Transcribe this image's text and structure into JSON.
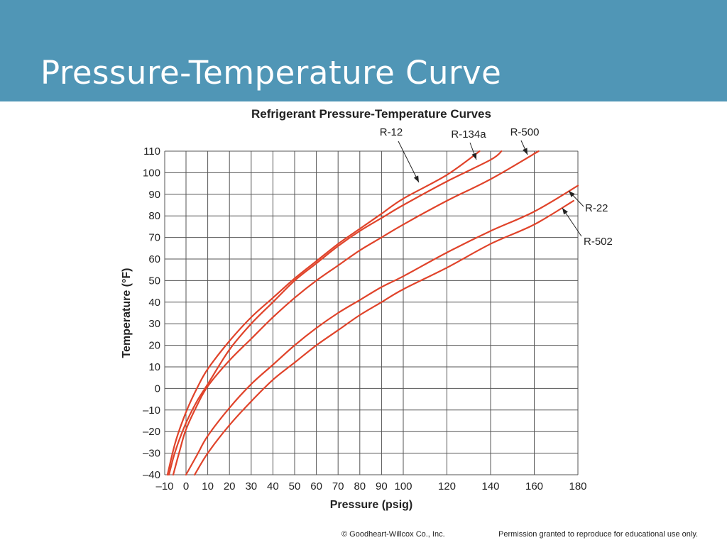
{
  "slide": {
    "title": "Pressure-Temperature Curve"
  },
  "footer": {
    "copyright": "© Goodheart-Willcox Co., Inc.",
    "permission": "Permission granted to reproduce for educational use only."
  },
  "colors": {
    "header": "#5096b6",
    "curve": "#e0432a",
    "grid": "#555555"
  },
  "chart_data": {
    "type": "line",
    "title": "Refrigerant Pressure-Temperature Curves",
    "xlabel": "Pressure (psig)",
    "ylabel": "Temperature (°F)",
    "xlim": [
      -10,
      180
    ],
    "ylim": [
      -40,
      110
    ],
    "x_ticks": [
      -10,
      0,
      10,
      20,
      30,
      40,
      50,
      60,
      70,
      80,
      90,
      100,
      120,
      140,
      160,
      180
    ],
    "x_tick_labels": [
      "–10",
      "0",
      "10",
      "20",
      "30",
      "40",
      "50",
      "60",
      "70",
      "80",
      "90",
      "100",
      "120",
      "140",
      "160",
      "180"
    ],
    "y_ticks": [
      110,
      100,
      90,
      80,
      70,
      60,
      50,
      40,
      30,
      20,
      10,
      0,
      -10,
      -20,
      -30,
      -40
    ],
    "y_tick_labels": [
      "110",
      "100",
      "90",
      "80",
      "70",
      "60",
      "50",
      "40",
      "30",
      "20",
      "10",
      "0",
      "–10",
      "–20",
      "–30",
      "–40"
    ],
    "grid": true,
    "series": [
      {
        "name": "R-12",
        "x": [
          -8.7,
          -5,
          0,
          5,
          10,
          20,
          30,
          40,
          50,
          60,
          70,
          80,
          90,
          100,
          120,
          135
        ],
        "y": [
          -40,
          -25,
          -11,
          0,
          9,
          22,
          33,
          42,
          51,
          59,
          67,
          74,
          81,
          88,
          99,
          110
        ]
      },
      {
        "name": "R-134a",
        "x": [
          -8,
          -5,
          0,
          5,
          10,
          20,
          30,
          40,
          50,
          60,
          70,
          80,
          90,
          100,
          120,
          140,
          145
        ],
        "y": [
          -40,
          -29,
          -16,
          -6,
          2,
          18,
          30,
          40,
          50,
          58,
          66,
          73,
          79,
          85,
          96,
          106,
          110
        ]
      },
      {
        "name": "R-500",
        "x": [
          -6,
          -3,
          0,
          5,
          10,
          20,
          30,
          40,
          50,
          60,
          70,
          80,
          90,
          100,
          120,
          140,
          162
        ],
        "y": [
          -40,
          -29,
          -19,
          -8,
          1,
          13,
          23,
          33,
          42,
          50,
          57,
          64,
          70,
          76,
          87,
          97,
          110
        ]
      },
      {
        "name": "R-22",
        "x": [
          0,
          5,
          10,
          20,
          30,
          40,
          50,
          60,
          70,
          80,
          90,
          100,
          120,
          140,
          160,
          180
        ],
        "y": [
          -40,
          -31,
          -22,
          -9,
          2,
          11,
          20,
          28,
          35,
          41,
          47,
          52,
          63,
          73,
          82,
          94
        ]
      },
      {
        "name": "R-502",
        "x": [
          4,
          10,
          20,
          30,
          40,
          50,
          60,
          70,
          80,
          90,
          100,
          120,
          140,
          160,
          178
        ],
        "y": [
          -40,
          -30,
          -17,
          -6,
          4,
          12,
          20,
          27,
          34,
          40,
          46,
          56,
          67,
          76,
          87
        ]
      }
    ],
    "annotations": [
      "R-12",
      "R-134a",
      "R-500",
      "R-22",
      "R-502"
    ]
  }
}
